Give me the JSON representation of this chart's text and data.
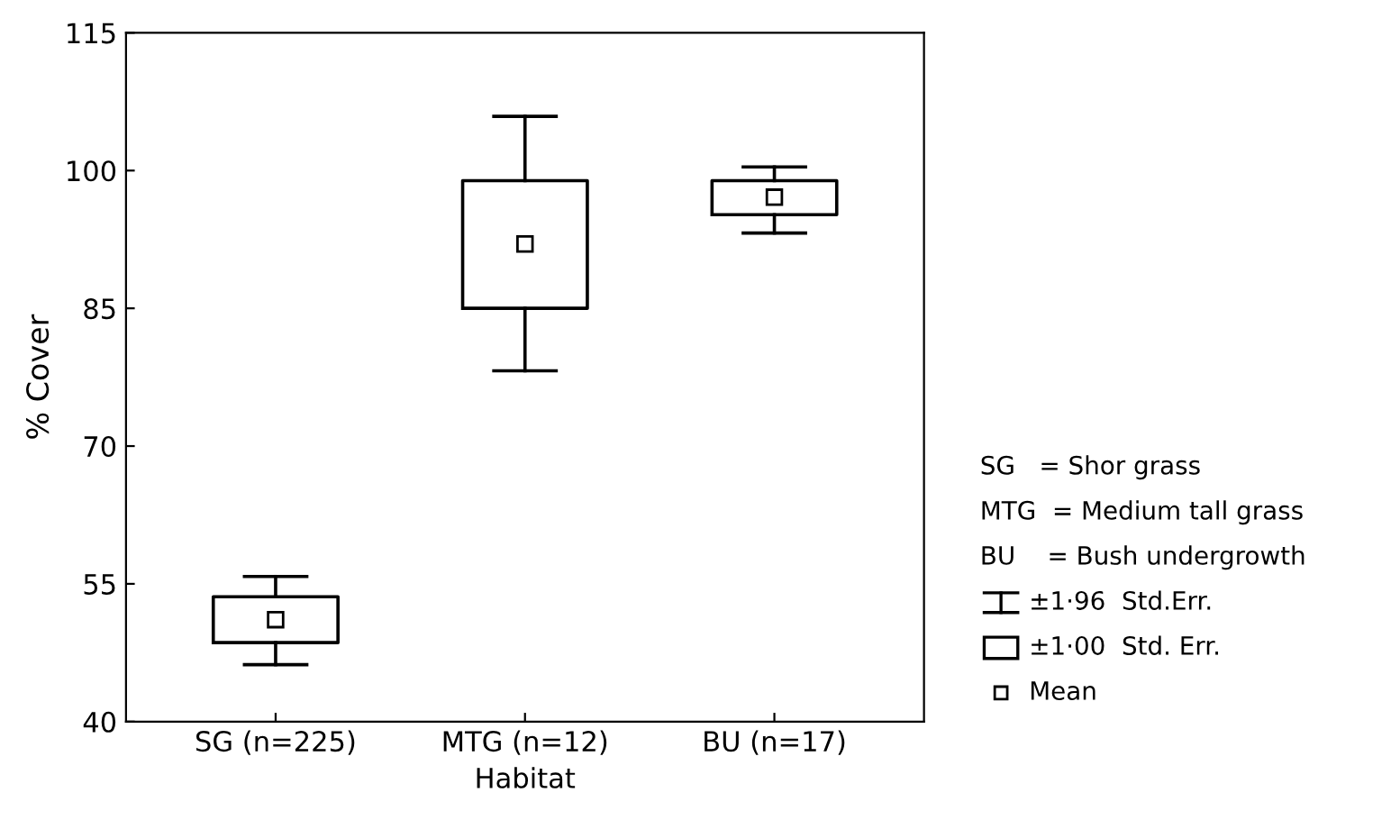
{
  "chart_data": {
    "type": "box",
    "xlabel": "Habitat",
    "ylabel": "% Cover",
    "categories": [
      "SG (n=225)",
      "MTG (n=12)",
      "BU (n=17)"
    ],
    "boxes": [
      {
        "low": 46.2,
        "q1": 48.6,
        "median": 51.1,
        "q3": 53.6,
        "high": 55.8
      },
      {
        "low": 78.2,
        "q1": 85.0,
        "median": 92.0,
        "q3": 98.9,
        "high": 105.9
      },
      {
        "low": 93.2,
        "q1": 95.2,
        "median": 97.1,
        "q3": 98.9,
        "high": 100.4
      }
    ],
    "ylim": [
      40,
      115
    ],
    "yticks": [
      40,
      55,
      70,
      85,
      100,
      115
    ],
    "grid": false,
    "marker": "square",
    "annotations": [
      "SG   = Shor grass",
      "MTG  = Medium tall grass",
      "BU    = Bush undergrowth",
      "±1·96  Std.Err.",
      "±1·00  Std. Err.",
      "Mean"
    ]
  }
}
